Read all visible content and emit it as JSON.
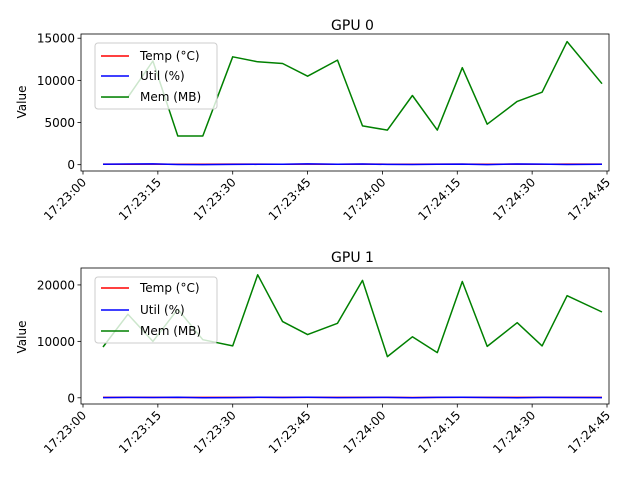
{
  "chart_data": [
    {
      "type": "line",
      "title": "GPU 0",
      "xlabel": "",
      "ylabel": "Value",
      "xlim": [
        "17:23:00",
        "17:24:45"
      ],
      "ylim": [
        -750,
        15500
      ],
      "x_ticks": [
        "17:23:00",
        "17:23:15",
        "17:23:30",
        "17:23:45",
        "17:24:00",
        "17:24:15",
        "17:24:30",
        "17:24:45"
      ],
      "y_ticks": [
        0,
        5000,
        10000,
        15000
      ],
      "grid": false,
      "legend": "upper left",
      "x": [
        "17:23:04",
        "17:23:09",
        "17:23:14",
        "17:23:19",
        "17:23:24",
        "17:23:30",
        "17:23:35",
        "17:23:40",
        "17:23:45",
        "17:23:51",
        "17:23:56",
        "17:24:01",
        "17:24:06",
        "17:24:11",
        "17:24:16",
        "17:24:21",
        "17:24:27",
        "17:24:32",
        "17:24:37",
        "17:24:44"
      ],
      "series": [
        {
          "name": "Temp (°C)",
          "color": "#ff0000",
          "values": [
            65,
            62,
            70,
            58,
            60,
            64,
            63,
            61,
            67,
            59,
            66,
            62,
            60,
            63,
            68,
            61,
            64,
            62,
            66,
            63
          ]
        },
        {
          "name": "Util (%)",
          "color": "#0000ff",
          "values": [
            45,
            80,
            95,
            20,
            10,
            35,
            50,
            60,
            90,
            40,
            85,
            30,
            25,
            55,
            70,
            15,
            75,
            65,
            20,
            50
          ]
        },
        {
          "name": "Mem (MB)",
          "color": "#008000",
          "values": [
            8000,
            8000,
            12300,
            3400,
            3400,
            12800,
            12200,
            12000,
            10500,
            12400,
            4600,
            4100,
            8200,
            4100,
            11500,
            4800,
            7500,
            8600,
            14600,
            9600
          ]
        }
      ]
    },
    {
      "type": "line",
      "title": "GPU 1",
      "xlabel": "",
      "ylabel": "Value",
      "xlim": [
        "17:23:00",
        "17:24:45"
      ],
      "ylim": [
        -1100,
        23000
      ],
      "x_ticks": [
        "17:23:00",
        "17:23:15",
        "17:23:30",
        "17:23:45",
        "17:24:00",
        "17:24:15",
        "17:24:30",
        "17:24:45"
      ],
      "y_ticks": [
        0,
        10000,
        20000
      ],
      "grid": false,
      "legend": "upper left",
      "x": [
        "17:23:04",
        "17:23:09",
        "17:23:14",
        "17:23:19",
        "17:23:24",
        "17:23:30",
        "17:23:35",
        "17:23:40",
        "17:23:45",
        "17:23:51",
        "17:23:56",
        "17:24:01",
        "17:24:06",
        "17:24:11",
        "17:24:16",
        "17:24:21",
        "17:24:27",
        "17:24:32",
        "17:24:37",
        "17:24:44"
      ],
      "series": [
        {
          "name": "Temp (°C)",
          "color": "#ff0000",
          "values": [
            62,
            64,
            66,
            60,
            63,
            65,
            61,
            67,
            64,
            62,
            66,
            63,
            60,
            64,
            65,
            62,
            63,
            61,
            64,
            62
          ]
        },
        {
          "name": "Util (%)",
          "color": "#0000ff",
          "values": [
            30,
            70,
            55,
            90,
            20,
            40,
            85,
            60,
            95,
            35,
            50,
            75,
            10,
            65,
            80,
            45,
            25,
            70,
            55,
            40
          ]
        },
        {
          "name": "Mem (MB)",
          "color": "#008000",
          "values": [
            9000,
            14800,
            10000,
            15700,
            10300,
            9200,
            21800,
            13500,
            11200,
            13200,
            20800,
            7300,
            10800,
            8000,
            20600,
            9100,
            13300,
            9200,
            18100,
            15200
          ]
        }
      ]
    }
  ]
}
